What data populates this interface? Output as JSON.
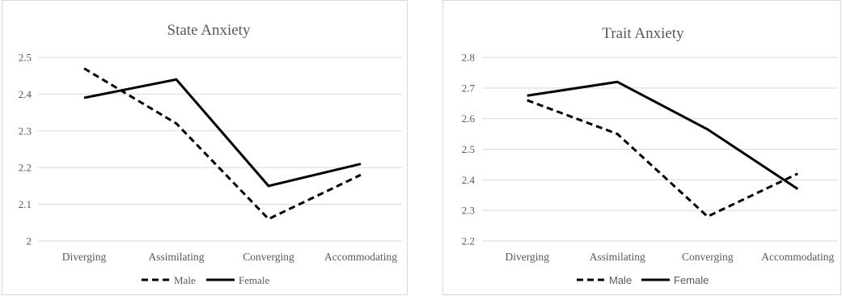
{
  "chart_data": [
    {
      "type": "line",
      "title": "State Anxiety",
      "categories": [
        "Diverging",
        "Assimilating",
        "Converging",
        "Accommodating"
      ],
      "ylim": [
        2,
        2.5
      ],
      "yticks": [
        "2",
        "2.1",
        "2.2",
        "2.3",
        "2.4",
        "2.5"
      ],
      "grid": true,
      "legend": "bottom",
      "series": [
        {
          "name": "Male",
          "style": "dashed",
          "color": "#000000",
          "values": [
            2.47,
            2.32,
            2.06,
            2.18
          ]
        },
        {
          "name": "Female",
          "style": "solid",
          "color": "#000000",
          "values": [
            2.39,
            2.44,
            2.15,
            2.21
          ]
        }
      ]
    },
    {
      "type": "line",
      "title": "Trait Anxiety",
      "categories": [
        "Diverging",
        "Assimilating",
        "Converging",
        "Accommodating"
      ],
      "ylim": [
        2.2,
        2.8
      ],
      "yticks": [
        "2.2",
        "2.3",
        "2.4",
        "2.5",
        "2.6",
        "2.7",
        "2.8"
      ],
      "grid": true,
      "legend": "bottom",
      "series": [
        {
          "name": "Male",
          "style": "dashed",
          "color": "#000000",
          "values": [
            2.66,
            2.55,
            2.28,
            2.42
          ]
        },
        {
          "name": "Female",
          "style": "solid",
          "color": "#000000",
          "values": [
            2.675,
            2.72,
            2.565,
            2.37
          ]
        }
      ]
    }
  ]
}
